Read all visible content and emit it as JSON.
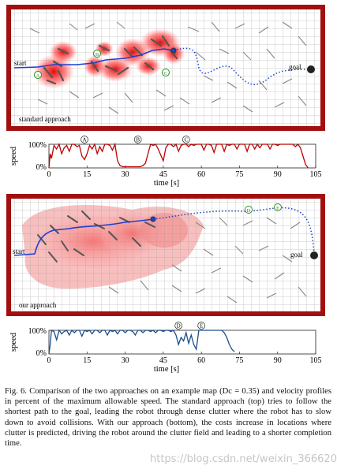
{
  "figure": {
    "top_map": {
      "label_start": "start",
      "label_goal": "goal",
      "caption": "standard approach",
      "markers": [
        "A",
        "B",
        "C"
      ]
    },
    "bottom_map": {
      "label_start": "start",
      "label_goal": "goal",
      "caption": "our approach",
      "markers": [
        "D",
        "E"
      ]
    }
  },
  "chart_data": [
    {
      "type": "line",
      "title": "",
      "xlabel": "time [s]",
      "ylabel": "speed",
      "xlim": [
        0,
        105
      ],
      "ylim": [
        0,
        100
      ],
      "xticks": [
        "0",
        "15",
        "30",
        "45",
        "60",
        "75",
        "90",
        "105"
      ],
      "yticks": [
        "100%",
        "0%"
      ],
      "color": "#c00000",
      "annotations": [
        {
          "label": "A",
          "x": 14
        },
        {
          "label": "B",
          "x": 35
        },
        {
          "label": "C",
          "x": 54
        }
      ],
      "series": [
        {
          "x": [
            0,
            0.5,
            1,
            2,
            3,
            4,
            5,
            6,
            7,
            8,
            9,
            10,
            11,
            12,
            13,
            14,
            15,
            16,
            17,
            18,
            19,
            20,
            21,
            22,
            23,
            24,
            25,
            26,
            27,
            28,
            29,
            30,
            31,
            32,
            33,
            34,
            35,
            36,
            37,
            38,
            39,
            40,
            41,
            42,
            43,
            44,
            45,
            46,
            47,
            48,
            49,
            50,
            51,
            52,
            53,
            54,
            55,
            56,
            57,
            58,
            59,
            60,
            61,
            62,
            63,
            64,
            65,
            66,
            67,
            68,
            69,
            70,
            71,
            72,
            73,
            74,
            75,
            76,
            77,
            78,
            79,
            80,
            81,
            82,
            83,
            84,
            85,
            86,
            87,
            88,
            89,
            90,
            91,
            92,
            93,
            94,
            95,
            96,
            97,
            98,
            99,
            100,
            101,
            102
          ],
          "values": [
            0,
            60,
            40,
            95,
            80,
            100,
            60,
            85,
            95,
            70,
            100,
            100,
            90,
            95,
            50,
            35,
            60,
            95,
            80,
            100,
            60,
            90,
            70,
            100,
            100,
            95,
            75,
            100,
            30,
            10,
            5,
            5,
            5,
            5,
            5,
            5,
            5,
            5,
            10,
            20,
            60,
            100,
            95,
            100,
            80,
            55,
            30,
            85,
            100,
            100,
            90,
            100,
            70,
            95,
            100,
            100,
            90,
            100,
            95,
            100,
            100,
            100,
            75,
            100,
            100,
            95,
            65,
            100,
            100,
            100,
            70,
            100,
            95,
            100,
            100,
            80,
            100,
            100,
            100,
            70,
            100,
            100,
            80,
            100,
            85,
            100,
            100,
            100,
            80,
            100,
            100,
            95,
            100,
            100,
            100,
            100,
            100,
            100,
            90,
            100,
            85,
            50,
            15,
            0
          ]
        }
      ]
    },
    {
      "type": "line",
      "title": "",
      "xlabel": "time [s]",
      "ylabel": "speed",
      "xlim": [
        0,
        105
      ],
      "ylim": [
        0,
        100
      ],
      "xticks": [
        "0",
        "15",
        "30",
        "45",
        "60",
        "75",
        "90",
        "105"
      ],
      "yticks": [
        "100%",
        "0%"
      ],
      "color": "#1a4f8c",
      "annotations": [
        {
          "label": "D",
          "x": 51
        },
        {
          "label": "E",
          "x": 60
        }
      ],
      "series": [
        {
          "x": [
            0,
            0.5,
            1,
            2,
            3,
            4,
            5,
            6,
            7,
            8,
            9,
            10,
            11,
            12,
            13,
            14,
            15,
            16,
            17,
            18,
            19,
            20,
            21,
            22,
            23,
            24,
            25,
            26,
            27,
            28,
            29,
            30,
            31,
            32,
            33,
            34,
            35,
            36,
            37,
            38,
            39,
            40,
            41,
            42,
            43,
            44,
            45,
            46,
            47,
            48,
            49,
            50,
            51,
            52,
            53,
            54,
            55,
            56,
            57,
            58,
            59,
            60,
            61,
            62,
            63,
            64,
            65,
            66,
            67,
            68,
            69,
            70,
            71,
            72,
            73
          ],
          "values": [
            0,
            40,
            100,
            95,
            60,
            100,
            85,
            95,
            100,
            80,
            100,
            90,
            100,
            100,
            75,
            100,
            95,
            100,
            85,
            100,
            100,
            90,
            100,
            100,
            80,
            100,
            95,
            100,
            85,
            100,
            100,
            90,
            100,
            100,
            95,
            80,
            100,
            100,
            90,
            100,
            100,
            95,
            100,
            90,
            100,
            100,
            95,
            100,
            100,
            95,
            100,
            80,
            40,
            70,
            55,
            90,
            45,
            80,
            40,
            20,
            100,
            100,
            100,
            100,
            100,
            100,
            100,
            100,
            100,
            100,
            90,
            70,
            40,
            20,
            10
          ]
        }
      ]
    }
  ],
  "caption": {
    "text": "Fig. 6.   Comparison of the two approaches on an example map (Dc = 0.35) and velocity profiles in percent of the maximum allowable speed. The standard approach (top) tries to follow the shortest path to the goal, leading the robot through dense clutter where the robot has to slow down to avoid collisions. With our approach (bottom), the costs increase in locations where clutter is predicted, driving the robot around the clutter field and leading to a shorter completion time."
  },
  "watermark": "https://blog.csdn.net/weixin_36662031"
}
